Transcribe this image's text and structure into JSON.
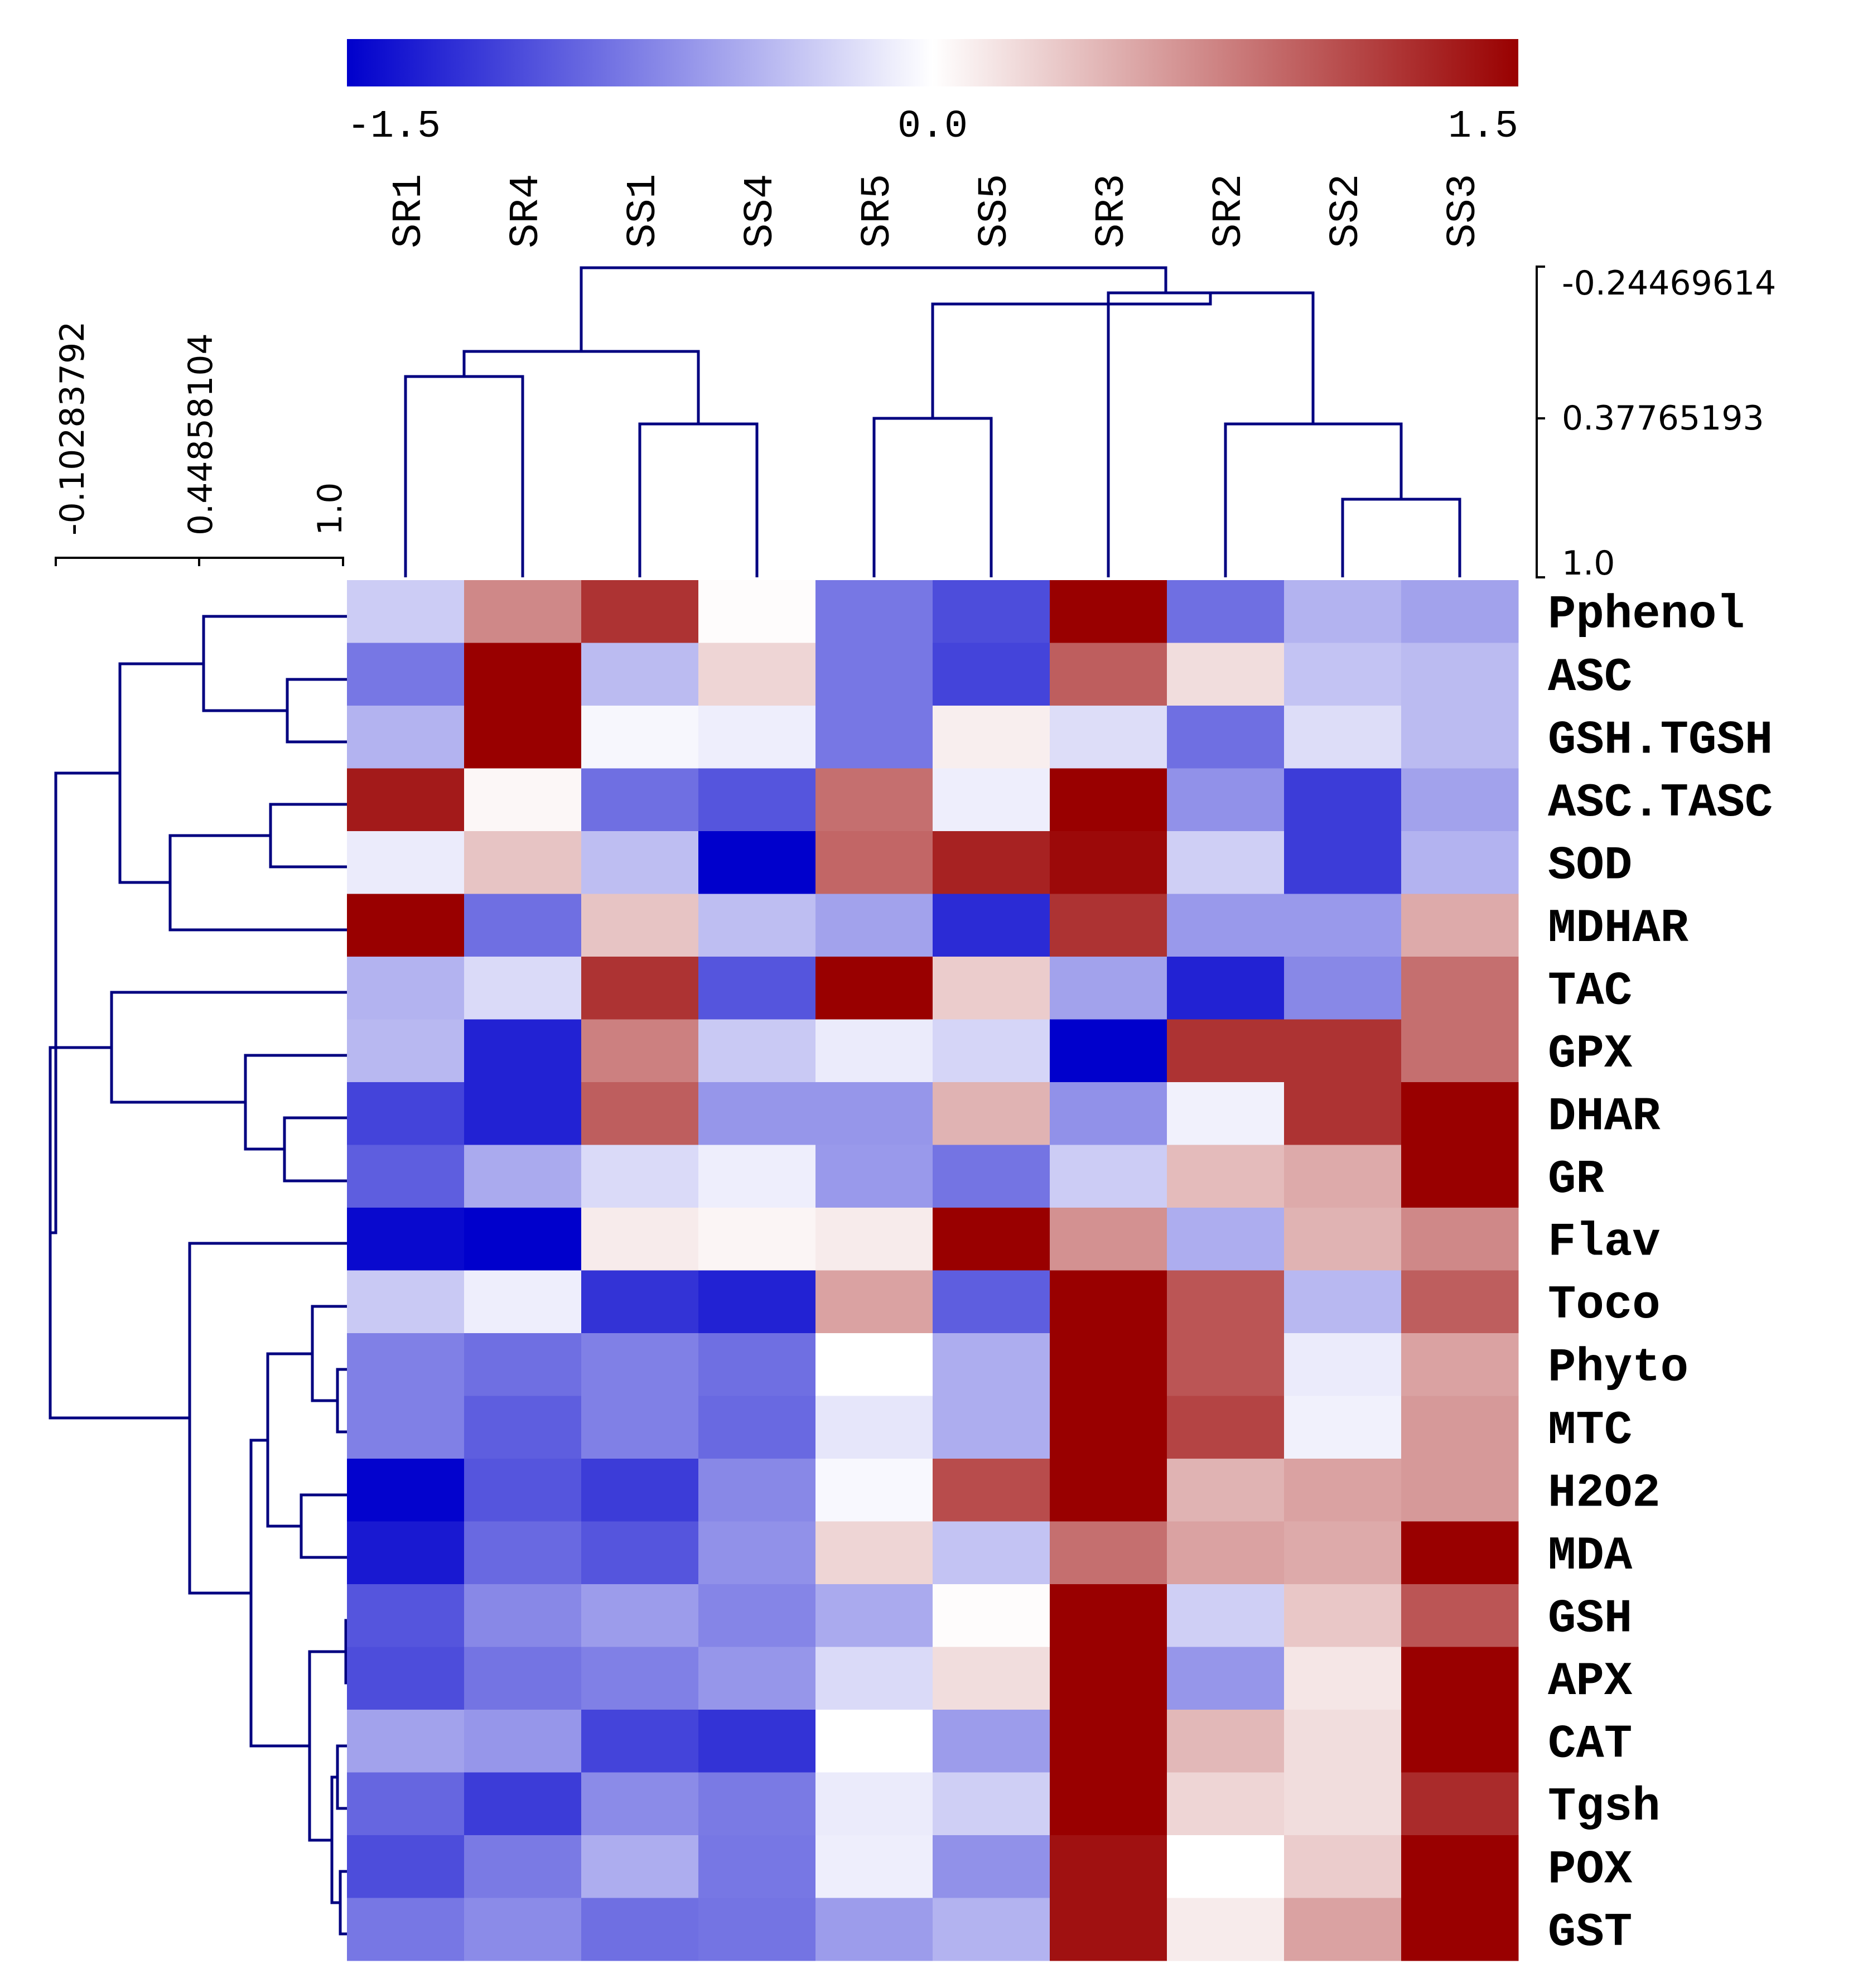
{
  "chart_data": {
    "type": "heatmap",
    "title": "",
    "colorscale": {
      "min": -1.5,
      "mid": 0.0,
      "max": 1.5,
      "low_color": "#0000cc",
      "mid_color": "#ffffff",
      "high_color": "#990000",
      "tick_labels": [
        "-1.5",
        "0.0",
        "1.5"
      ]
    },
    "columns": [
      "SR1",
      "SR4",
      "SS1",
      "SS4",
      "SR5",
      "SS5",
      "SR3",
      "SR2",
      "SS2",
      "SS3"
    ],
    "rows": [
      "Pphenol",
      "ASC",
      "GSH.TGSH",
      "ASC.TASC",
      "SOD",
      "MDHAR",
      "TAC",
      "GPX",
      "DHAR",
      "GR",
      "Flav",
      "Toco",
      "Phyto",
      "MTC",
      "H2O2",
      "MDA",
      "GSH",
      "APX",
      "CAT",
      "Tgsh",
      "POX",
      "GST"
    ],
    "values": [
      [
        -0.3,
        0.7,
        1.2,
        0.02,
        -0.8,
        -1.05,
        1.5,
        -0.85,
        -0.45,
        -0.55
      ],
      [
        -0.8,
        1.5,
        -0.4,
        0.25,
        -0.8,
        -1.1,
        0.95,
        0.2,
        -0.35,
        -0.4
      ],
      [
        -0.45,
        1.5,
        -0.05,
        -0.1,
        -0.8,
        0.1,
        -0.2,
        -0.85,
        -0.2,
        -0.4
      ],
      [
        1.35,
        0.05,
        -0.85,
        -1.0,
        0.85,
        -0.1,
        1.5,
        -0.65,
        -1.15,
        -0.55
      ],
      [
        -0.12,
        0.35,
        -0.38,
        -1.5,
        0.9,
        1.3,
        1.45,
        -0.28,
        -1.15,
        -0.45
      ],
      [
        1.5,
        -0.85,
        0.35,
        -0.38,
        -0.55,
        -1.25,
        1.2,
        -0.6,
        -0.6,
        0.5
      ],
      [
        -0.45,
        -0.22,
        1.2,
        -1.0,
        1.5,
        0.3,
        -0.55,
        -1.3,
        -0.7,
        0.85
      ],
      [
        -0.42,
        -1.3,
        0.75,
        -0.32,
        -0.12,
        -0.25,
        -1.5,
        1.2,
        1.2,
        0.85
      ],
      [
        -1.1,
        -1.3,
        0.95,
        -0.62,
        -0.62,
        0.45,
        -0.65,
        -0.08,
        1.2,
        1.5
      ],
      [
        -0.95,
        -0.5,
        -0.22,
        -0.1,
        -0.6,
        -0.82,
        -0.3,
        0.4,
        0.5,
        1.5
      ],
      [
        -1.45,
        -1.5,
        0.12,
        0.06,
        0.12,
        1.5,
        0.65,
        -0.48,
        0.45,
        0.7
      ],
      [
        -0.32,
        -0.1,
        -1.2,
        -1.3,
        0.55,
        -0.95,
        1.5,
        1.0,
        -0.42,
        0.95
      ],
      [
        -0.75,
        -0.85,
        -0.75,
        -0.85,
        0.0,
        -0.48,
        1.5,
        1.0,
        -0.12,
        0.55
      ],
      [
        -0.75,
        -0.95,
        -0.75,
        -0.88,
        -0.15,
        -0.48,
        1.5,
        1.1,
        -0.08,
        0.6
      ],
      [
        -1.48,
        -1.0,
        -1.15,
        -0.7,
        -0.04,
        1.05,
        1.5,
        0.45,
        0.55,
        0.6
      ],
      [
        -1.35,
        -0.88,
        -1.0,
        -0.65,
        0.25,
        -0.35,
        0.85,
        0.55,
        0.5,
        1.5
      ],
      [
        -1.0,
        -0.7,
        -0.58,
        -0.72,
        -0.5,
        0.02,
        1.5,
        -0.28,
        0.33,
        1.0
      ],
      [
        -1.05,
        -0.82,
        -0.75,
        -0.62,
        -0.22,
        0.2,
        1.5,
        -0.62,
        0.15,
        1.5
      ],
      [
        -0.55,
        -0.62,
        -1.1,
        -1.2,
        0.0,
        -0.58,
        1.5,
        0.42,
        0.2,
        1.5
      ],
      [
        -0.9,
        -1.15,
        -0.68,
        -0.78,
        -0.12,
        -0.28,
        1.5,
        0.25,
        0.2,
        1.25
      ],
      [
        -1.05,
        -0.78,
        -0.48,
        -0.8,
        -0.1,
        -0.65,
        1.4,
        0.0,
        0.3,
        1.5
      ],
      [
        -0.8,
        -0.68,
        -0.85,
        -0.82,
        -0.58,
        -0.45,
        1.4,
        0.12,
        0.55,
        1.5
      ]
    ],
    "column_dendrogram": {
      "scale_labels": [
        "-0.24469614",
        "0.37765193",
        "1.0"
      ]
    },
    "row_dendrogram": {
      "scale_labels": [
        "-0.10283792",
        "0.44858104",
        "1.0"
      ]
    }
  },
  "colors": {
    "dendrogram": "#000080",
    "axis": "#000000",
    "text": "#000000"
  }
}
